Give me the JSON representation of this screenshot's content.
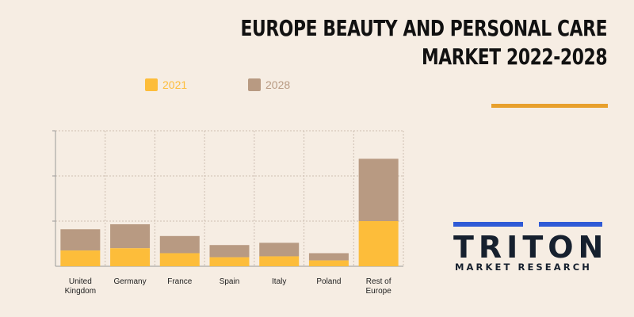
{
  "title": {
    "line1": "EUROPE BEAUTY AND PERSONAL CARE",
    "line2": "MARKET 2022-2028"
  },
  "colors": {
    "background": "#f6ede3",
    "series_2021": "#fdbd3a",
    "series_2028": "#b89a82",
    "accent": "#e8a02c",
    "logo_blue": "#2f5ad6",
    "logo_text": "#16202e"
  },
  "logo": {
    "name": "TRITON",
    "tagline": "MARKET RESEARCH"
  },
  "chart_data": {
    "type": "bar",
    "stacked": true,
    "categories": [
      "United Kingdom",
      "Germany",
      "France",
      "Spain",
      "Italy",
      "Poland",
      "Rest of Europe"
    ],
    "category_lines": [
      [
        "United",
        "Kingdom"
      ],
      [
        "Germany"
      ],
      [
        "France"
      ],
      [
        "Spain"
      ],
      [
        "Italy"
      ],
      [
        "Poland"
      ],
      [
        "Rest of",
        "Europe"
      ]
    ],
    "series": [
      {
        "name": "2021",
        "values": [
          0.35,
          0.4,
          0.29,
          0.2,
          0.22,
          0.13,
          1.0
        ]
      },
      {
        "name": "2028",
        "values": [
          0.47,
          0.53,
          0.38,
          0.27,
          0.3,
          0.16,
          1.38
        ]
      }
    ],
    "ylim": [
      0,
      3
    ],
    "y_gridlines": [
      0,
      1,
      2,
      3
    ],
    "grid": true,
    "legend_position": "top",
    "title": "",
    "xlabel": "",
    "ylabel": ""
  }
}
